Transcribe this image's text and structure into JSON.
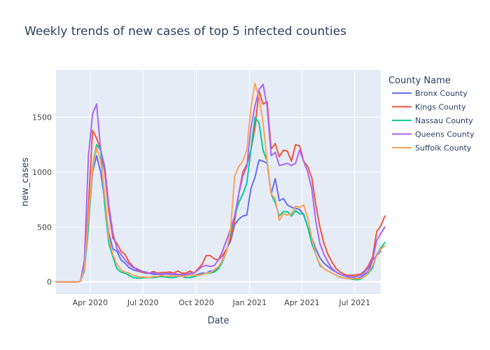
{
  "chart_data": {
    "type": "line",
    "title": "Weekly trends of new cases of top 5 infected counties",
    "xlabel": "Date",
    "ylabel": "new_cases",
    "x_ticks": [
      "Apr 2020",
      "Jul 2020",
      "Oct 2020",
      "Jan 2021",
      "Apr 2021",
      "Jul 2021"
    ],
    "y_ticks": [
      0,
      500,
      1000,
      1500
    ],
    "ylim": [
      -110,
      1930
    ],
    "legend_title": "County Name",
    "legend_position": "right",
    "x_start": "2020-02-02",
    "x_end": "2021-08-15",
    "series_start": "2020-02-02",
    "series_interval_weeks": 1,
    "series": [
      {
        "name": "Bronx County",
        "color": "#636efa",
        "values": [
          0,
          0,
          0,
          0,
          0,
          0,
          5,
          150,
          550,
          1000,
          1150,
          1000,
          750,
          450,
          300,
          280,
          200,
          170,
          130,
          110,
          100,
          90,
          80,
          80,
          70,
          70,
          70,
          75,
          70,
          70,
          65,
          60,
          60,
          65,
          60,
          70,
          80,
          80,
          100,
          100,
          130,
          200,
          300,
          370,
          520,
          570,
          600,
          610,
          850,
          950,
          1110,
          1100,
          1080,
          800,
          940,
          740,
          760,
          700,
          680,
          670,
          660,
          610,
          500,
          400,
          300,
          220,
          170,
          140,
          110,
          90,
          70,
          55,
          45,
          40,
          30,
          40,
          70,
          100,
          200,
          240,
          280
        ]
      },
      {
        "name": "Kings County",
        "color": "#ef553b",
        "values": [
          0,
          0,
          0,
          0,
          0,
          0,
          5,
          130,
          700,
          1380,
          1310,
          1200,
          1000,
          650,
          400,
          350,
          280,
          250,
          180,
          140,
          110,
          90,
          85,
          80,
          95,
          80,
          85,
          85,
          90,
          80,
          100,
          80,
          80,
          100,
          80,
          120,
          160,
          240,
          240,
          210,
          200,
          240,
          300,
          400,
          550,
          800,
          1000,
          1070,
          1200,
          1400,
          1740,
          1620,
          1640,
          1210,
          1260,
          1140,
          1200,
          1190,
          1100,
          1250,
          1240,
          1100,
          1050,
          950,
          700,
          500,
          350,
          250,
          180,
          120,
          90,
          70,
          60,
          60,
          65,
          70,
          100,
          150,
          230,
          460,
          510,
          600
        ]
      },
      {
        "name": "Nassau County",
        "color": "#00cc96",
        "values": [
          0,
          0,
          0,
          0,
          0,
          0,
          5,
          100,
          500,
          1050,
          1250,
          1200,
          700,
          350,
          230,
          120,
          90,
          80,
          60,
          40,
          35,
          35,
          40,
          40,
          40,
          45,
          50,
          45,
          40,
          40,
          50,
          50,
          40,
          40,
          50,
          60,
          70,
          80,
          80,
          90,
          120,
          180,
          280,
          450,
          600,
          720,
          800,
          900,
          1200,
          1500,
          1450,
          1200,
          1100,
          800,
          720,
          600,
          640,
          640,
          600,
          650,
          620,
          620,
          500,
          350,
          250,
          150,
          120,
          100,
          80,
          60,
          45,
          35,
          30,
          25,
          20,
          25,
          50,
          80,
          130,
          250,
          310,
          360
        ]
      },
      {
        "name": "Queens County",
        "color": "#ab63fa",
        "values": [
          0,
          0,
          0,
          0,
          0,
          0,
          5,
          200,
          1150,
          1530,
          1620,
          1200,
          1050,
          700,
          450,
          300,
          250,
          200,
          160,
          130,
          120,
          100,
          90,
          80,
          85,
          75,
          75,
          80,
          75,
          75,
          70,
          65,
          70,
          80,
          80,
          110,
          140,
          150,
          140,
          150,
          200,
          280,
          380,
          480,
          600,
          800,
          960,
          1050,
          1400,
          1600,
          1750,
          1800,
          1600,
          1150,
          1180,
          1060,
          1070,
          1080,
          1060,
          1080,
          1200,
          1100,
          1000,
          850,
          550,
          350,
          250,
          180,
          120,
          90,
          70,
          55,
          50,
          45,
          50,
          60,
          90,
          130,
          200,
          380,
          440,
          500
        ]
      },
      {
        "name": "Suffolk County",
        "color": "#ffa15a",
        "values": [
          0,
          0,
          0,
          0,
          0,
          0,
          5,
          120,
          600,
          1030,
          1220,
          1100,
          800,
          400,
          250,
          160,
          110,
          90,
          80,
          60,
          50,
          45,
          45,
          40,
          50,
          50,
          60,
          50,
          55,
          55,
          55,
          50,
          55,
          60,
          60,
          60,
          65,
          80,
          85,
          110,
          140,
          190,
          280,
          480,
          960,
          1050,
          1100,
          1200,
          1580,
          1810,
          1680,
          1450,
          1100,
          800,
          760,
          560,
          620,
          610,
          620,
          690,
          680,
          700,
          580,
          400,
          250,
          160,
          120,
          100,
          80,
          60,
          40,
          35,
          30,
          30,
          30,
          30,
          50,
          90,
          150,
          240,
          300,
          330
        ]
      }
    ]
  }
}
